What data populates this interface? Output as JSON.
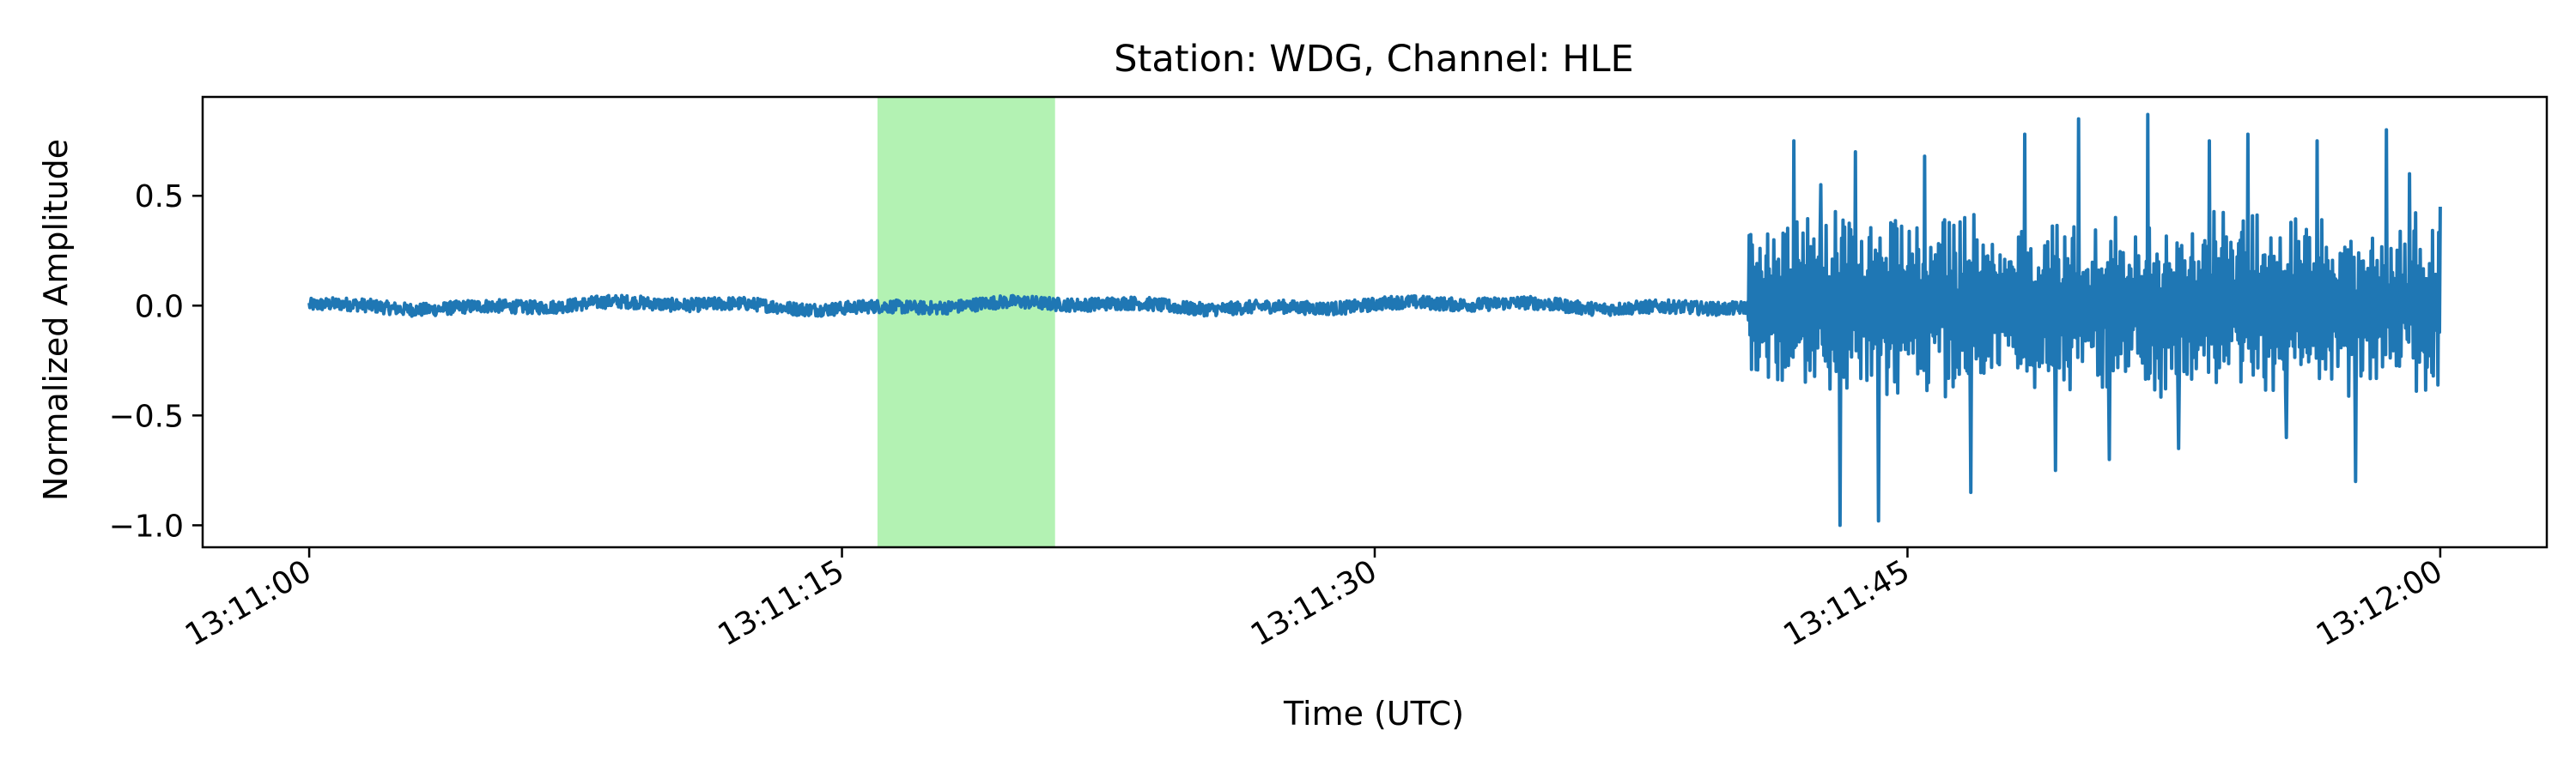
{
  "chart_data": {
    "type": "line",
    "title": "Station: WDG, Channel: HLE",
    "xlabel": "Time (UTC)",
    "ylabel": "Normalized Amplitude",
    "x_range": [
      "13:10:57",
      "13:12:03"
    ],
    "ylim": [
      -1.1,
      0.95
    ],
    "x_ticks": [
      "13:11:00",
      "13:11:15",
      "13:11:30",
      "13:11:45",
      "13:12:00"
    ],
    "y_ticks": [
      -1.0,
      -0.5,
      0.0,
      0.5
    ],
    "y_tick_labels": [
      "−1.0",
      "−0.5",
      "0.0",
      "0.5"
    ],
    "grid": false,
    "highlight_window": {
      "start": "13:11:16",
      "end": "13:11:21",
      "color": "#b3f2b3"
    },
    "series": [
      {
        "color": "#1f77b4",
        "x_start": "13:11:00",
        "x_end": "13:12:00",
        "noise_phase": {
          "start": "13:11:00",
          "end": "13:11:40.5",
          "amplitude": 0.03
        },
        "event_onset": "13:11:40.5",
        "event_phase": {
          "start": "13:11:40.5",
          "end": "13:12:00",
          "min": -1.0,
          "max": 0.87,
          "typical_range": [
            -0.45,
            0.45
          ]
        },
        "final_value": 0.45
      }
    ]
  }
}
